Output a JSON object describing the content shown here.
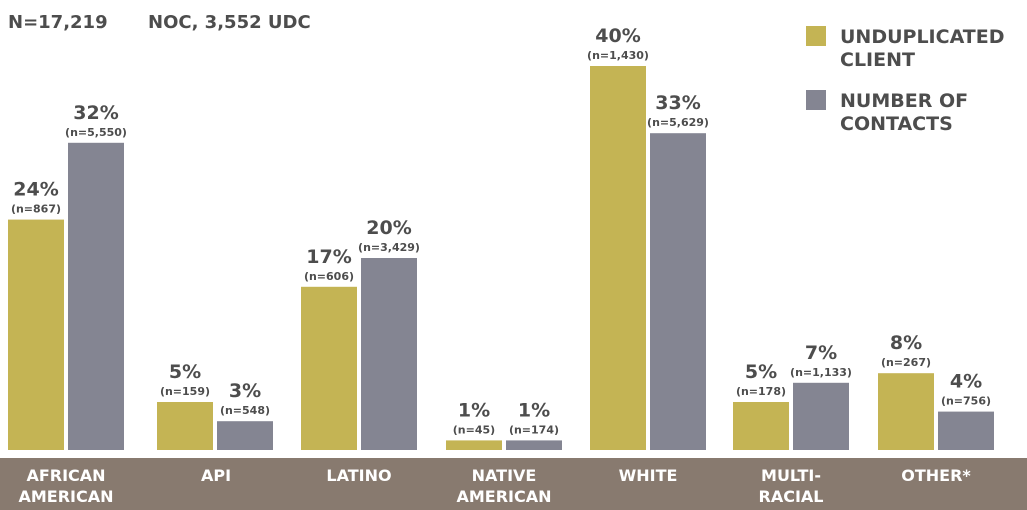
{
  "header": {
    "left": "N=17,219",
    "right": "NOC, 3,552 UDC"
  },
  "colors": {
    "unduplicated": "#c4b454",
    "contacts": "#848592",
    "category_band": "#887a6f"
  },
  "chart_data": {
    "type": "bar",
    "categories": [
      [
        "AFRICAN",
        "AMERICAN"
      ],
      [
        "API"
      ],
      [
        "LATINO"
      ],
      [
        "NATIVE",
        "AMERICAN"
      ],
      [
        "WHITE"
      ],
      [
        "MULTI-",
        "RACIAL"
      ],
      [
        "OTHER*"
      ]
    ],
    "series": [
      {
        "name": [
          "UNDUPLICATED",
          "CLIENT"
        ],
        "values": [
          24,
          5,
          17,
          1,
          40,
          5,
          8
        ],
        "labels": [
          "24%",
          "5%",
          "17%",
          "1%",
          "40%",
          "5%",
          "8%"
        ],
        "counts": [
          "(n=867)",
          "(n=159)",
          "(n=606)",
          "(n=45)",
          "(n=1,430)",
          "(n=178)",
          "(n=267)"
        ]
      },
      {
        "name": [
          "NUMBER OF",
          "CONTACTS"
        ],
        "values": [
          32,
          3,
          20,
          1,
          33,
          7,
          4
        ],
        "labels": [
          "32%",
          "3%",
          "20%",
          "1%",
          "33%",
          "7%",
          "4%"
        ],
        "counts": [
          "(n=5,550)",
          "(n=548)",
          "(n=3,429)",
          "(n=174)",
          "(n=5,629)",
          "(n=1,133)",
          "(n=756)"
        ]
      }
    ],
    "ylim": [
      0,
      40
    ],
    "legend": "top-right",
    "grid": false
  }
}
